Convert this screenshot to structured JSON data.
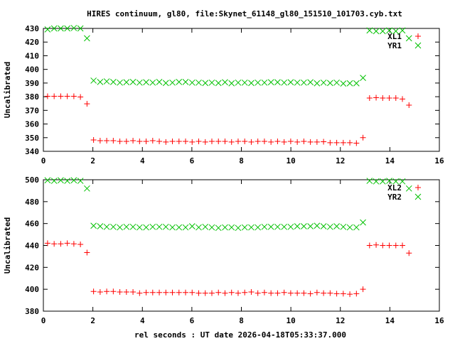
{
  "title": "HIRES continuum, gl80, file:Skynet_61148_gl80_151510_101703.cyb.txt",
  "xlabel": "rel seconds : UT date 2026-04-18T05:33:37.000",
  "colors": {
    "XL": "#ff0000",
    "YR": "#00c000"
  },
  "chart_data": [
    {
      "type": "scatter",
      "ylabel": "Uncalibrated",
      "xlim": [
        0,
        16
      ],
      "ylim": [
        340,
        430
      ],
      "xticks": [
        0,
        2,
        4,
        6,
        8,
        10,
        12,
        14,
        16
      ],
      "yticks": [
        340,
        350,
        360,
        370,
        380,
        390,
        400,
        410,
        420,
        430
      ],
      "legend": "top-right",
      "x0": 0.17,
      "dx": 0.2655,
      "series": [
        {
          "name": "XL1",
          "marker": "plus",
          "values": [
            380.3,
            380.3,
            380.3,
            380.3,
            380.3,
            379.8,
            374.8,
            348.3,
            347.8,
            347.8,
            347.8,
            347.3,
            347.3,
            347.8,
            347.3,
            347.3,
            347.8,
            347.3,
            346.8,
            347.3,
            347.3,
            347.3,
            346.8,
            347.3,
            346.8,
            347.3,
            347.3,
            347.3,
            346.8,
            347.3,
            347.3,
            346.8,
            347.3,
            347.3,
            346.8,
            347.3,
            346.8,
            347.3,
            346.8,
            347.3,
            346.8,
            346.8,
            347.0,
            346.3,
            346.3,
            346.3,
            346.3,
            346.0,
            350.0,
            379.0,
            379.3,
            379.0,
            379.0,
            379.0,
            378.3,
            373.8
          ]
        },
        {
          "name": "YR1",
          "marker": "cross",
          "values": [
            429.3,
            430,
            430,
            430,
            430.3,
            430,
            422.8,
            391.8,
            390.8,
            391.2,
            390.8,
            390.3,
            390.6,
            390.8,
            390.3,
            390.6,
            390.3,
            390.8,
            390.0,
            390.3,
            390.8,
            390.8,
            390.3,
            390.3,
            390.0,
            390.3,
            390.0,
            390.6,
            389.8,
            390.3,
            390.3,
            390.0,
            390.3,
            390.3,
            390.6,
            390.6,
            390.3,
            390.6,
            390.3,
            390.3,
            390.6,
            389.8,
            390.3,
            390.0,
            390.3,
            389.6,
            389.8,
            389.8,
            393.8,
            428.5,
            428,
            428,
            428.5,
            428,
            428.5,
            422.8
          ]
        }
      ]
    },
    {
      "type": "scatter",
      "ylabel": "Uncalibrated",
      "xlim": [
        0,
        16
      ],
      "ylim": [
        380,
        500
      ],
      "xticks": [
        0,
        2,
        4,
        6,
        8,
        10,
        12,
        14,
        16
      ],
      "yticks": [
        380,
        400,
        420,
        440,
        460,
        480,
        500
      ],
      "legend": "top-right",
      "x0": 0.17,
      "dx": 0.2655,
      "series": [
        {
          "name": "XL2",
          "marker": "plus",
          "values": [
            442,
            441.5,
            441.5,
            442,
            441.5,
            441,
            433.5,
            398,
            397.5,
            398,
            398,
            397.5,
            397.5,
            397.5,
            396.5,
            397,
            397,
            397,
            397,
            397,
            397,
            397,
            397,
            396.5,
            396.5,
            396.5,
            397,
            396.5,
            397,
            396.5,
            397,
            397.5,
            396.5,
            397,
            396.5,
            396.5,
            397,
            396.5,
            396.5,
            396.5,
            396,
            397,
            396.5,
            396.5,
            396,
            396,
            395.5,
            396,
            400,
            440,
            440.5,
            440,
            440,
            440,
            440,
            433
          ]
        },
        {
          "name": "YR2",
          "marker": "cross",
          "values": [
            499.5,
            499,
            499.5,
            499,
            499.5,
            499,
            492,
            458,
            457.5,
            457,
            457,
            456.5,
            457,
            457,
            456.5,
            456.5,
            457,
            457,
            457,
            456.5,
            456.5,
            456.5,
            457.5,
            456.5,
            457,
            456.5,
            456,
            456.5,
            456.5,
            456,
            456.5,
            456.5,
            456.5,
            457,
            457,
            457,
            457,
            457,
            457.5,
            457.5,
            457.5,
            458,
            457.5,
            457,
            457.5,
            457,
            456.5,
            456.5,
            461,
            499,
            498.5,
            498.5,
            499,
            498.5,
            498.5,
            492
          ]
        }
      ]
    }
  ]
}
